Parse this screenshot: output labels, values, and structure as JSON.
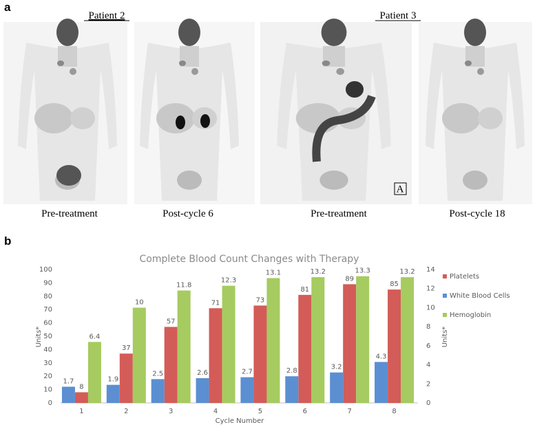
{
  "figure": {
    "panel_a_label": "a",
    "panel_b_label": "b",
    "patients": [
      {
        "name": "Patient 2",
        "images": [
          "Pre-treatment",
          "Post-cycle 6"
        ]
      },
      {
        "name": "Patient 3",
        "images": [
          "Pre-treatment",
          "Post-cycle 18"
        ]
      }
    ],
    "image_marker": "A"
  },
  "chart_data": {
    "type": "bar",
    "title": "Complete Blood Count Changes with Therapy",
    "x_label": "Cycle Number",
    "y_label": "Units*",
    "y2_label": "Units*",
    "categories": [
      "1",
      "2",
      "3",
      "4",
      "5",
      "6",
      "7",
      "8"
    ],
    "series": [
      {
        "name": "Platelets",
        "color": "#d35c58",
        "values": [
          8,
          37,
          57,
          71,
          73,
          81,
          89,
          85
        ]
      },
      {
        "name": "White Blood Cells",
        "color": "#5b8fd2",
        "axis": "y2",
        "values": [
          1.7,
          1.9,
          2.5,
          2.6,
          2.7,
          2.8,
          3.2,
          4.3
        ]
      },
      {
        "name": "Hemoglobin",
        "color": "#a6cb60",
        "axis": "y2",
        "values": [
          6.4,
          10,
          11.8,
          12.3,
          13.1,
          13.2,
          13.3,
          13.2
        ]
      }
    ],
    "ylim": [
      0,
      100
    ],
    "yticks": [
      0,
      10,
      20,
      30,
      40,
      50,
      60,
      70,
      80,
      90,
      100
    ],
    "y2lim": [
      0,
      14
    ],
    "y2ticks": [
      0,
      2,
      4,
      6,
      8,
      10,
      12,
      14
    ],
    "grid": false,
    "legend": "right"
  }
}
